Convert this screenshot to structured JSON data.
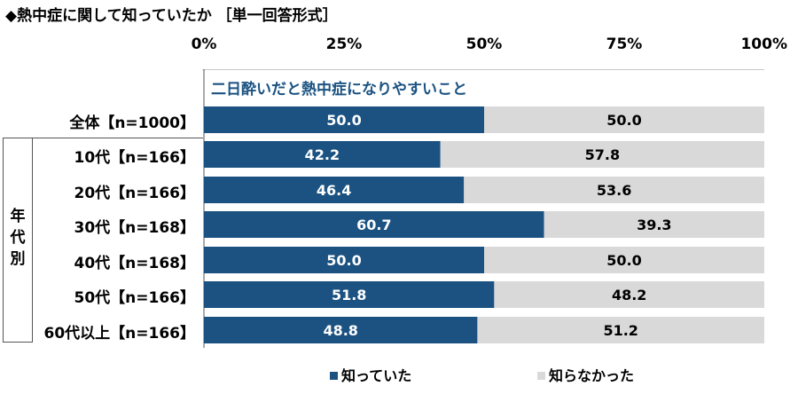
{
  "title": "◆熱中症に関して知っていたか ［単一回答形式］",
  "group_label": "年代別",
  "colors": {
    "knew": "#1b5281",
    "didnt_know": "#d9d9d9",
    "subtitle": "#1b5281"
  },
  "chart_data": {
    "type": "bar",
    "orientation": "horizontal",
    "stacked": true,
    "subtitle": "二日酔いだと熱中症になりやすいこと",
    "x_ticks": [
      "0%",
      "25%",
      "50%",
      "75%",
      "100%"
    ],
    "xlim": [
      0,
      100
    ],
    "categories": [
      "全体【n=1000】",
      "10代【n=166】",
      "20代【n=166】",
      "30代【n=168】",
      "40代【n=168】",
      "50代【n=166】",
      "60代以上【n=166】"
    ],
    "series": [
      {
        "name": "知っていた",
        "values": [
          50.0,
          42.2,
          46.4,
          60.7,
          50.0,
          51.8,
          48.8
        ]
      },
      {
        "name": "知らなかった",
        "values": [
          50.0,
          57.8,
          53.6,
          39.3,
          50.0,
          48.2,
          51.2
        ]
      }
    ],
    "legend_position": "bottom"
  }
}
